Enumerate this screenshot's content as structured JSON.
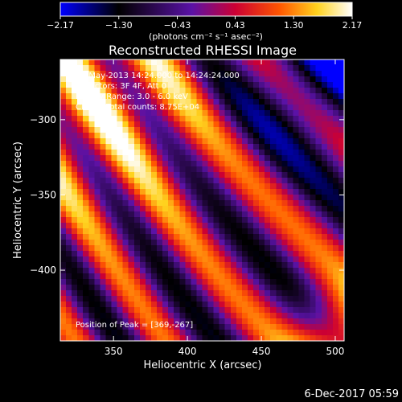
{
  "chart_data": {
    "type": "heatmap",
    "title": "Reconstructed RHESSI Image",
    "xlabel": "Heliocentric X (arcsec)",
    "ylabel": "Heliocentric Y (arcsec)",
    "xlim": [
      314,
      506
    ],
    "ylim": [
      -447,
      -260
    ],
    "x_ticks": [
      350,
      400,
      450,
      500
    ],
    "y_ticks": [
      -300,
      -350,
      -400
    ],
    "colorbar": {
      "min": -2.17,
      "max": 2.17,
      "tick_values": [
        -2.17,
        -1.3,
        -0.43,
        0.43,
        1.3,
        2.17
      ],
      "tick_labels": [
        "-2.17",
        "-1.30",
        "-0.43",
        "0.43",
        "1.30",
        "2.17"
      ],
      "unit_label": "(photons cm⁻² s⁻¹ asec⁻²)"
    },
    "info_lines": [
      "23-May-2013 14:24.000 to 14:24:24.000",
      "Detectors: 3F 4F, Att 0",
      "Energy Range: 3.0 - 6.0 keV",
      "Clean , Total counts: 8.75E+04"
    ],
    "peak_label": "Position of Peak = [369,-267]"
  },
  "footer": {
    "date": "6-Dec-2017 05:59"
  }
}
